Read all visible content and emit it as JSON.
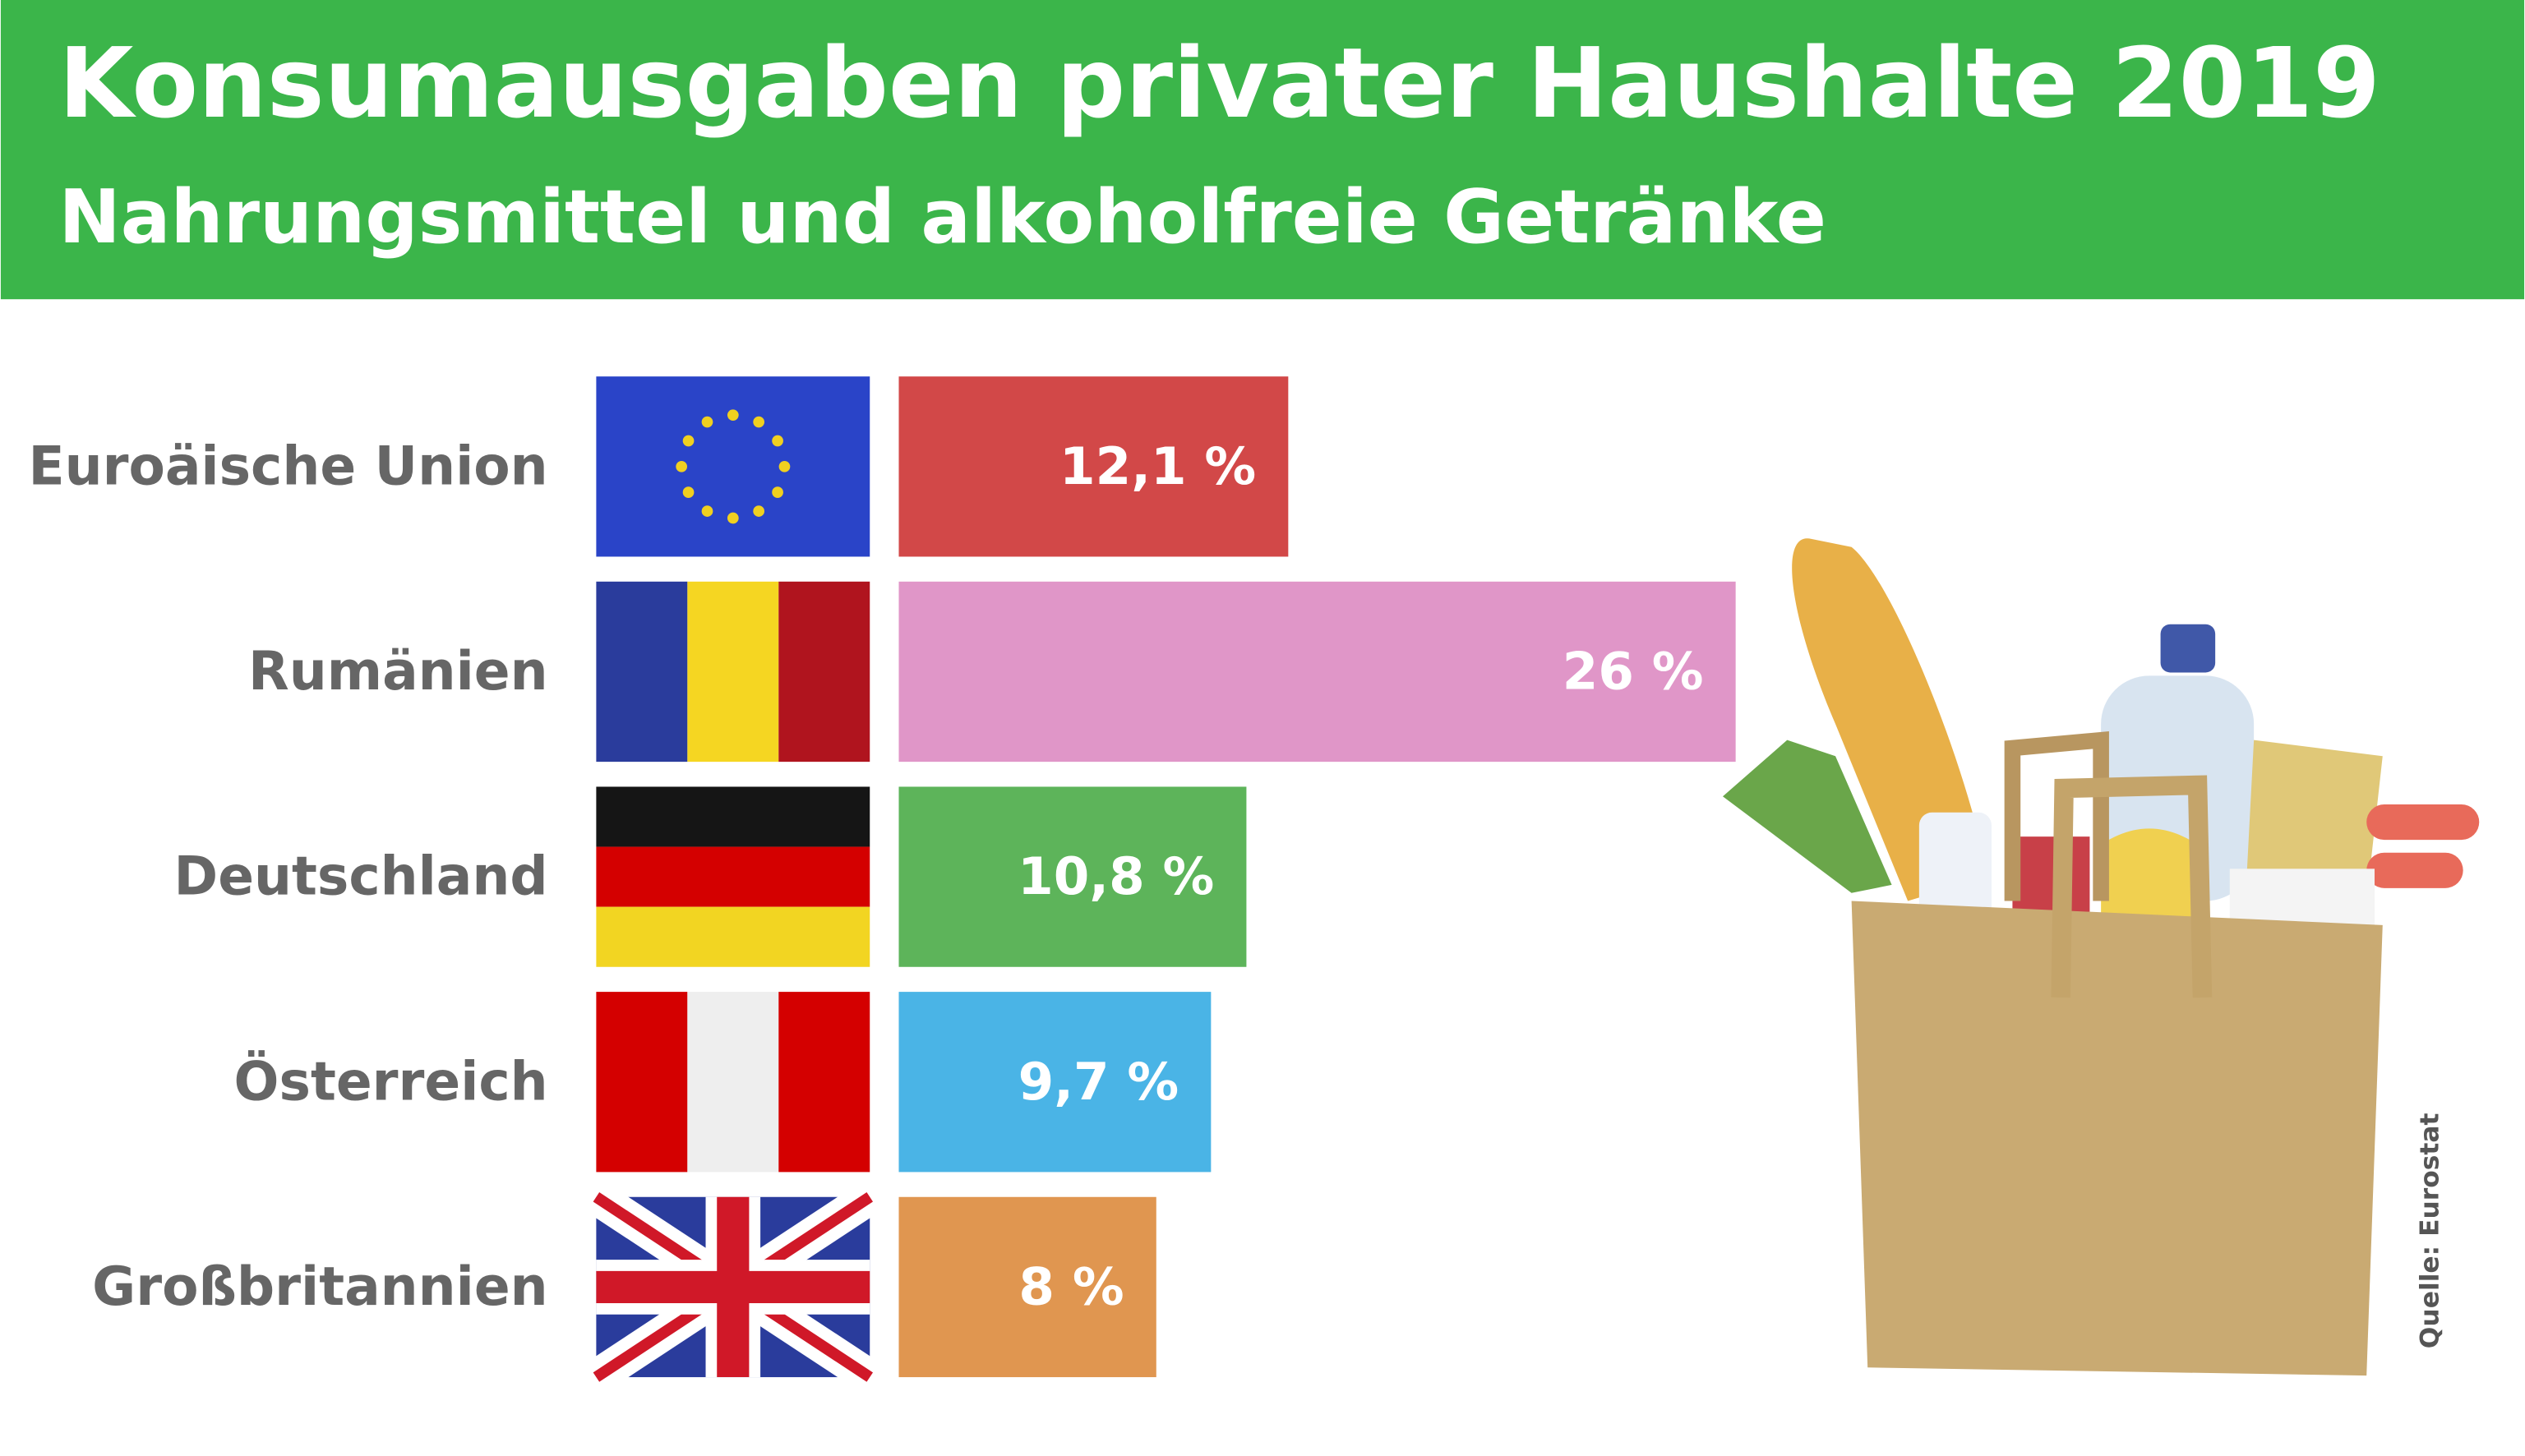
{
  "chart_data": {
    "type": "bar",
    "orientation": "horizontal",
    "title": "Konsumausgaben privater Haushalte 2019",
    "subtitle": "Nahrungsmittel und alkoholfreie Getränke",
    "categories": [
      "Euroäische Union",
      "Rumänien",
      "Deutschland",
      "Österreich",
      "Großbritannien"
    ],
    "values": [
      12.1,
      26,
      10.8,
      9.7,
      8
    ],
    "value_labels": [
      "12,1 %",
      "26 %",
      "10,8 %",
      "9,7 %",
      "8 %"
    ],
    "colors": [
      "#d24848",
      "#e096c8",
      "#5db45a",
      "#4ab4e6",
      "#e09650"
    ],
    "source": "Quelle: Eurostat"
  }
}
